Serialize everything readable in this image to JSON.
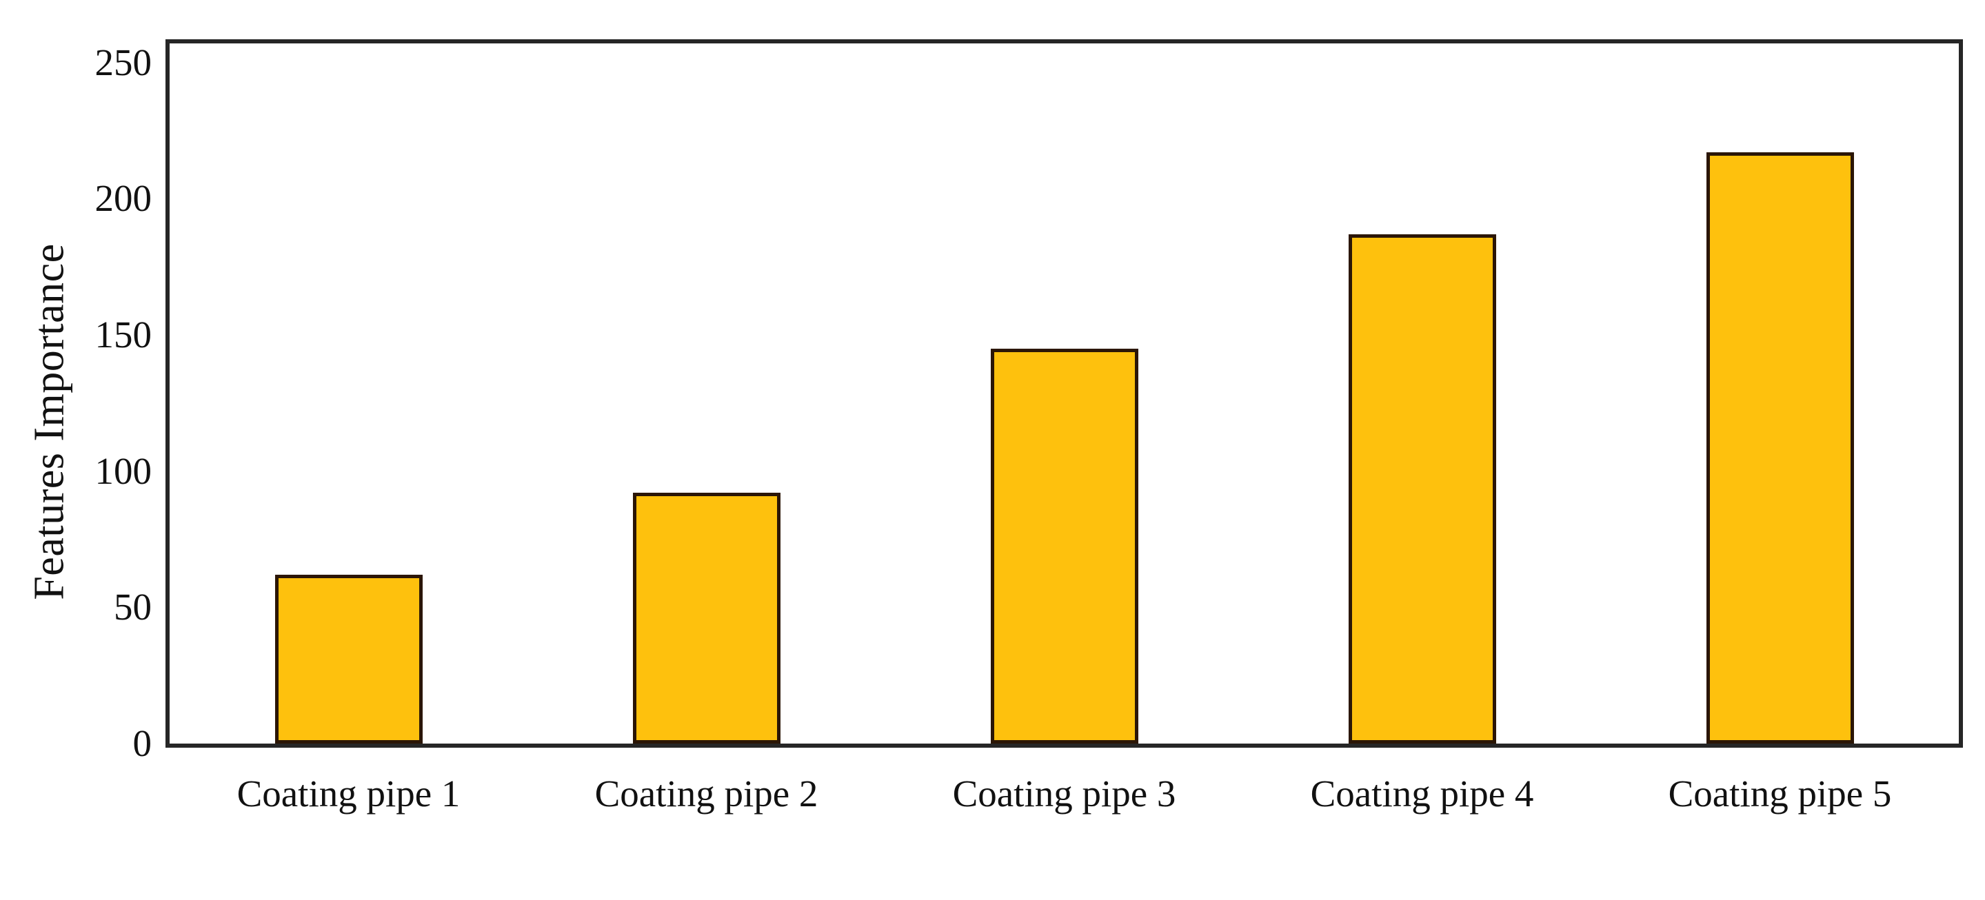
{
  "chart_data": {
    "type": "bar",
    "title": "",
    "categories": [
      "Coating pipe 1",
      "Coating pipe 2",
      "Coating pipe 3",
      "Coating pipe 4",
      "Coating pipe 5"
    ],
    "values": [
      62,
      92,
      145,
      187,
      217
    ],
    "xlabel": "",
    "ylabel": "Features Importance",
    "yticks": [
      0,
      50,
      100,
      150,
      200,
      250
    ],
    "ylim": [
      0,
      257
    ],
    "grid": false,
    "legend": false,
    "bar_color": "#FEC10D",
    "bar_edge_color": "#2B1606",
    "frame_color": "#262626",
    "background_color": "#FFFFFF",
    "text_color": "#111111"
  }
}
